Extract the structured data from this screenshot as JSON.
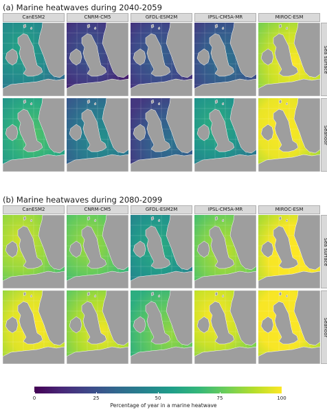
{
  "figure": {
    "section_a_title": "(a) Marine heatwaves during 2040-2059",
    "section_b_title": "(b) Marine heatwaves during 2080-2099",
    "models": [
      "CanESM2",
      "CNRM-CM5",
      "GFDL-ESM2M",
      "IPSL-CM5A-MR",
      "MIROC-ESM"
    ],
    "depths": [
      "Sea surface",
      "Seafloor"
    ],
    "colorbar": {
      "title": "Percentage of year in a marine heatwave",
      "ticks": [
        "0",
        "25",
        "50",
        "75",
        "100"
      ],
      "palette": [
        "#440154",
        "#482878",
        "#3e4989",
        "#31688e",
        "#26828e",
        "#1f9e89",
        "#35b779",
        "#6ece58",
        "#b5de2b",
        "#fde725"
      ],
      "range": [
        0,
        100
      ]
    },
    "land_color": "#9e9e9e",
    "panel_levels": {
      "a_sea_surface": [
        48,
        18,
        22,
        28,
        92
      ],
      "a_seafloor": [
        62,
        40,
        28,
        52,
        97
      ],
      "b_sea_surface": [
        84,
        76,
        52,
        80,
        99
      ],
      "b_seafloor": [
        95,
        88,
        74,
        92,
        99
      ]
    }
  }
}
